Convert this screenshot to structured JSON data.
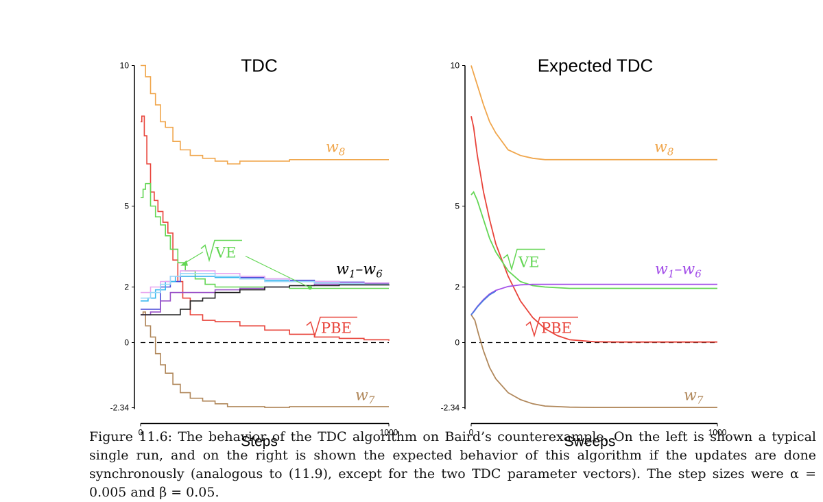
{
  "chart_data": [
    {
      "type": "line",
      "title": "TDC",
      "xlabel": "Steps",
      "ylabel": "",
      "xlim": [
        0,
        1000
      ],
      "ylim": [
        -2.34,
        10
      ],
      "xticks": [
        "0",
        "1000"
      ],
      "yticks": [
        "10",
        "5",
        "2",
        "0",
        "-2.34"
      ],
      "reference_line": {
        "y": 0,
        "style": "dashed"
      },
      "labels": {
        "w8": "w",
        "w8_sub": "8",
        "w7": "w",
        "w7_sub": "7",
        "w1w6": "w",
        "w1w6_sub1": "1",
        "w1w6_sep": "–",
        "w1w6_sub2": "6",
        "ve": "VE",
        "pbe": "PBE"
      },
      "series": [
        {
          "key": "w8",
          "color": "#f0a64c",
          "x": [
            0,
            20,
            40,
            60,
            80,
            100,
            130,
            160,
            200,
            250,
            300,
            350,
            400,
            500,
            600,
            700,
            800,
            900,
            1000
          ],
          "y": [
            10,
            9.6,
            9.0,
            8.6,
            8.0,
            7.8,
            7.3,
            7.0,
            6.8,
            6.7,
            6.6,
            6.5,
            6.6,
            6.6,
            6.65,
            6.65,
            6.65,
            6.65,
            6.65
          ]
        },
        {
          "key": "pbe",
          "color": "#e8433a",
          "x": [
            0,
            5,
            15,
            25,
            40,
            55,
            70,
            90,
            110,
            130,
            150,
            170,
            200,
            250,
            300,
            400,
            500,
            600,
            700,
            800,
            900,
            1000
          ],
          "y": [
            8.0,
            8.2,
            7.5,
            6.5,
            5.5,
            5.2,
            4.8,
            4.4,
            4.0,
            3.0,
            2.2,
            1.6,
            1.0,
            0.8,
            0.75,
            0.6,
            0.45,
            0.3,
            0.2,
            0.15,
            0.1,
            0.07
          ]
        },
        {
          "key": "ve",
          "color": "#63d654",
          "x": [
            0,
            10,
            20,
            40,
            60,
            80,
            100,
            120,
            150,
            180,
            220,
            260,
            300,
            400,
            500,
            600,
            700,
            800,
            900,
            1000
          ],
          "y": [
            5.3,
            5.6,
            5.8,
            5.0,
            4.6,
            4.3,
            3.9,
            3.4,
            2.9,
            2.6,
            2.3,
            2.1,
            2.0,
            2.0,
            2.0,
            1.95,
            1.95,
            1.95,
            1.95,
            1.95
          ]
        },
        {
          "key": "w7",
          "color": "#b0875a",
          "x": [
            0,
            10,
            20,
            40,
            60,
            80,
            100,
            130,
            160,
            200,
            250,
            300,
            350,
            400,
            500,
            600,
            700,
            800,
            900,
            1000
          ],
          "y": [
            1.0,
            1.1,
            0.6,
            0.2,
            -0.4,
            -0.8,
            -1.1,
            -1.5,
            -1.8,
            -2.0,
            -2.1,
            -2.2,
            -2.3,
            -2.3,
            -2.35,
            -2.3,
            -2.3,
            -2.3,
            -2.3,
            -2.3
          ]
        },
        {
          "key": "w1",
          "color": "#4b4bd8",
          "x": [
            0,
            40,
            80,
            120,
            160,
            200,
            300,
            400,
            500,
            600,
            700,
            800,
            900,
            1000
          ],
          "y": [
            1.2,
            1.2,
            2.0,
            2.2,
            2.4,
            2.4,
            2.4,
            2.35,
            2.3,
            2.25,
            2.2,
            2.18,
            2.15,
            2.15
          ]
        },
        {
          "key": "w2",
          "color": "#38b8ef",
          "x": [
            0,
            30,
            60,
            100,
            140,
            200,
            300,
            400,
            500,
            600,
            700,
            800,
            900,
            1000
          ],
          "y": [
            1.5,
            1.6,
            1.9,
            2.2,
            2.4,
            2.4,
            2.35,
            2.3,
            2.25,
            2.2,
            2.15,
            2.12,
            2.1,
            2.1
          ]
        },
        {
          "key": "w3",
          "color": "#e8a8f0",
          "x": [
            0,
            40,
            80,
            120,
            160,
            200,
            300,
            400,
            500,
            600,
            700,
            800,
            900,
            1000
          ],
          "y": [
            1.8,
            2.0,
            2.2,
            2.4,
            2.6,
            2.6,
            2.5,
            2.4,
            2.3,
            2.2,
            2.2,
            2.15,
            2.15,
            2.12
          ]
        },
        {
          "key": "w4",
          "color": "#9a52c8",
          "x": [
            0,
            40,
            80,
            120,
            160,
            200,
            300,
            400,
            500,
            600,
            700,
            800,
            900,
            1000
          ],
          "y": [
            1.0,
            1.1,
            1.5,
            1.8,
            1.8,
            1.8,
            1.9,
            1.95,
            2.0,
            2.05,
            2.1,
            2.1,
            2.12,
            2.12
          ]
        },
        {
          "key": "w5",
          "color": "#9ad8f8",
          "x": [
            0,
            40,
            80,
            120,
            160,
            200,
            300,
            400,
            500,
            600,
            700,
            800,
            900,
            1000
          ],
          "y": [
            1.6,
            1.8,
            2.1,
            2.4,
            2.5,
            2.5,
            2.4,
            2.3,
            2.2,
            2.2,
            2.15,
            2.12,
            2.1,
            2.1
          ]
        },
        {
          "key": "w6",
          "color": "#222222",
          "x": [
            0,
            40,
            80,
            120,
            160,
            200,
            250,
            300,
            400,
            500,
            600,
            700,
            800,
            900,
            1000
          ],
          "y": [
            1.0,
            1.0,
            1.0,
            1.0,
            1.2,
            1.5,
            1.6,
            1.8,
            1.9,
            2.0,
            2.05,
            2.05,
            2.08,
            2.08,
            2.1
          ]
        }
      ]
    },
    {
      "type": "line",
      "title": "Expected TDC",
      "xlabel": "Sweeps",
      "ylabel": "",
      "xlim": [
        0,
        1000
      ],
      "ylim": [
        -2.34,
        10
      ],
      "xticks": [
        "0",
        "1000"
      ],
      "yticks": [
        "10",
        "5",
        "2",
        "0",
        "-2.34"
      ],
      "reference_line": {
        "y": 0,
        "style": "dashed"
      },
      "labels": {
        "w8": "w",
        "w8_sub": "8",
        "w7": "w",
        "w7_sub": "7",
        "w1w6": "w",
        "w1w6_sub1": "1",
        "w1w6_sep": "–",
        "w1w6_sub2": "6",
        "ve": "VE",
        "pbe": "PBE"
      },
      "series": [
        {
          "key": "w8",
          "color": "#f0a64c",
          "x": [
            0,
            25,
            50,
            75,
            100,
            150,
            200,
            250,
            300,
            400,
            500,
            600,
            800,
            1000
          ],
          "y": [
            10,
            9.3,
            8.6,
            8.0,
            7.6,
            7.0,
            6.8,
            6.7,
            6.65,
            6.65,
            6.65,
            6.65,
            6.65,
            6.65
          ]
        },
        {
          "key": "pbe",
          "color": "#e8433a",
          "x": [
            0,
            10,
            25,
            50,
            75,
            100,
            150,
            200,
            250,
            300,
            350,
            400,
            500,
            600,
            800,
            1000
          ],
          "y": [
            8.2,
            7.8,
            6.8,
            5.5,
            4.5,
            3.6,
            2.4,
            1.5,
            0.9,
            0.5,
            0.25,
            0.1,
            0.03,
            0.02,
            0.02,
            0.02
          ]
        },
        {
          "key": "ve",
          "color": "#63d654",
          "x": [
            0,
            10,
            25,
            50,
            75,
            100,
            150,
            200,
            250,
            300,
            400,
            500,
            600,
            800,
            1000
          ],
          "y": [
            5.4,
            5.5,
            5.2,
            4.5,
            3.8,
            3.3,
            2.6,
            2.2,
            2.05,
            2.0,
            1.95,
            1.95,
            1.95,
            1.95,
            1.95
          ]
        },
        {
          "key": "w7",
          "color": "#b0875a",
          "x": [
            0,
            15,
            30,
            50,
            75,
            100,
            150,
            200,
            250,
            300,
            350,
            400,
            500,
            600,
            800,
            1000
          ],
          "y": [
            1.0,
            0.8,
            0.3,
            -0.3,
            -0.9,
            -1.3,
            -1.8,
            -2.05,
            -2.2,
            -2.28,
            -2.3,
            -2.32,
            -2.33,
            -2.33,
            -2.33,
            -2.33
          ]
        },
        {
          "key": "w1w6",
          "color": "#a24de8",
          "x": [
            0,
            25,
            50,
            75,
            100,
            150,
            200,
            250,
            300,
            400,
            500,
            600,
            800,
            1000
          ],
          "y": [
            1.0,
            1.3,
            1.55,
            1.75,
            1.88,
            2.02,
            2.08,
            2.1,
            2.1,
            2.1,
            2.1,
            2.1,
            2.1,
            2.1
          ]
        },
        {
          "key": "w1w6b",
          "color": "#4a7ae0",
          "x": [
            0,
            10,
            25,
            50,
            75,
            100
          ],
          "y": [
            1.0,
            1.1,
            1.28,
            1.52,
            1.72,
            1.85
          ]
        }
      ]
    }
  ],
  "caption": "Figure 11.6: The behavior of the TDC algorithm on Baird’s counterexample. On the left is shown a typical single run, and on the right is shown the expected behavior of this algorithm if the updates are done synchronously (analogous to (11.9), except for the two TDC parameter vectors). The step sizes were α = 0.005 and β = 0.05."
}
